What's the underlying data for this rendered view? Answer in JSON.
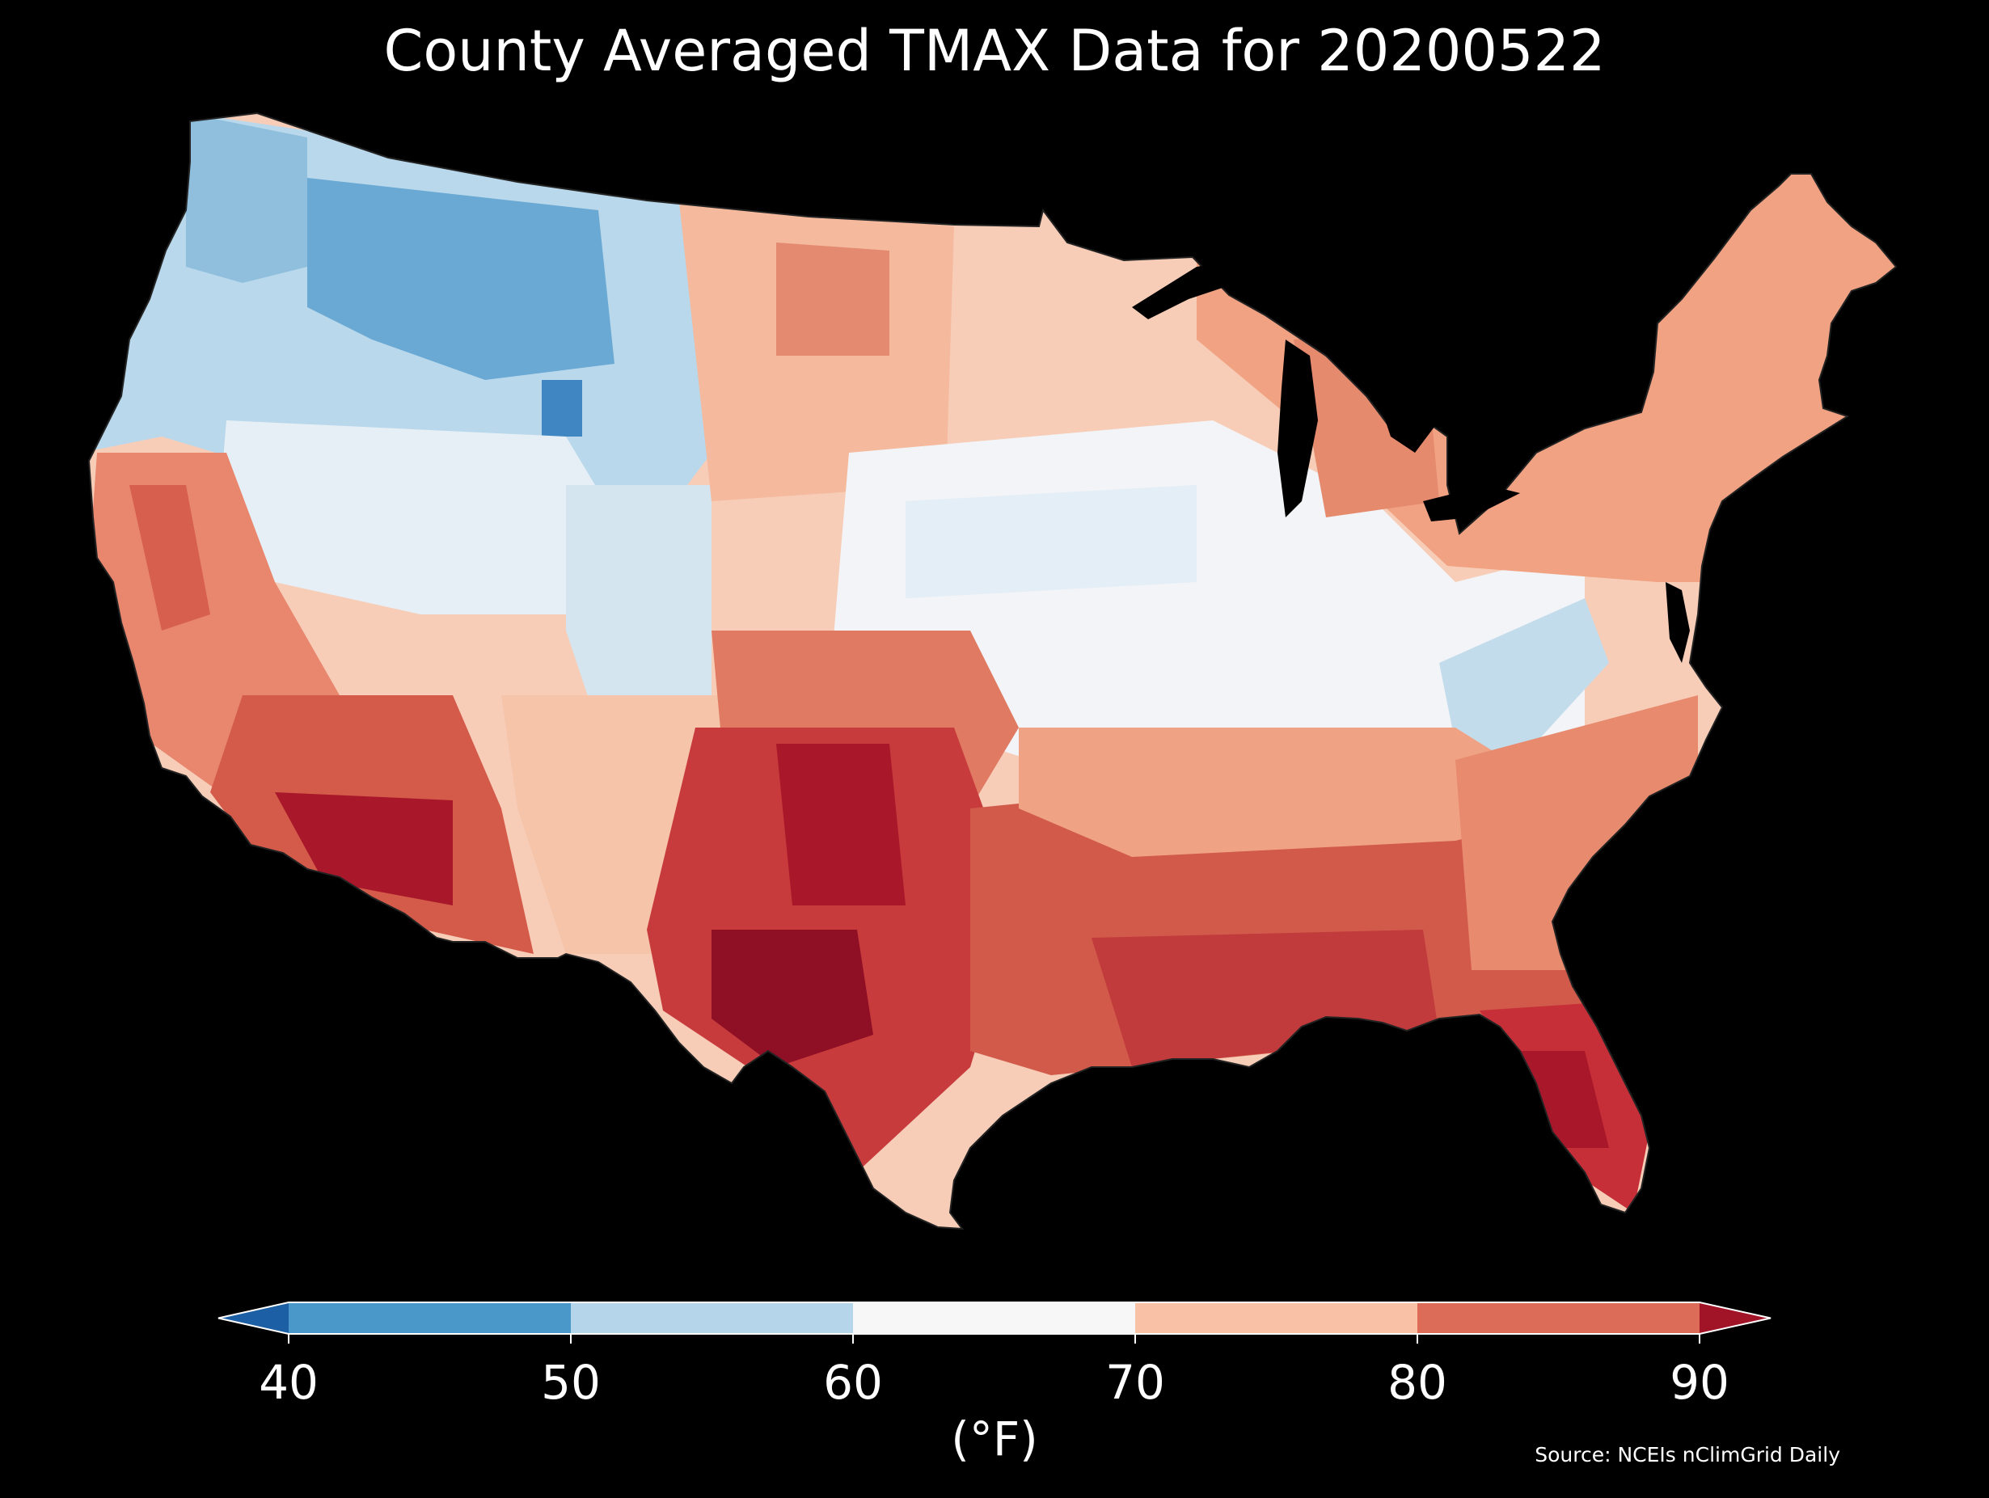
{
  "title": "County Averaged TMAX Data for 20200522",
  "source": "Source: NCEIs nClimGrid Daily",
  "colorbar": {
    "unit_label": "(°F)",
    "ticks": [
      40,
      50,
      60,
      70,
      80,
      90
    ],
    "extend": "both",
    "bins": [
      {
        "from": 40,
        "to": 50,
        "color": "#4a98c9"
      },
      {
        "from": 50,
        "to": 60,
        "color": "#b5d6ea"
      },
      {
        "from": 60,
        "to": 70,
        "color": "#f7f7f7"
      },
      {
        "from": 70,
        "to": 80,
        "color": "#f9c2a6"
      },
      {
        "from": 80,
        "to": 90,
        "color": "#dc6b58"
      }
    ],
    "under_color": "#1d5fa4",
    "over_color": "#a11428"
  }
}
